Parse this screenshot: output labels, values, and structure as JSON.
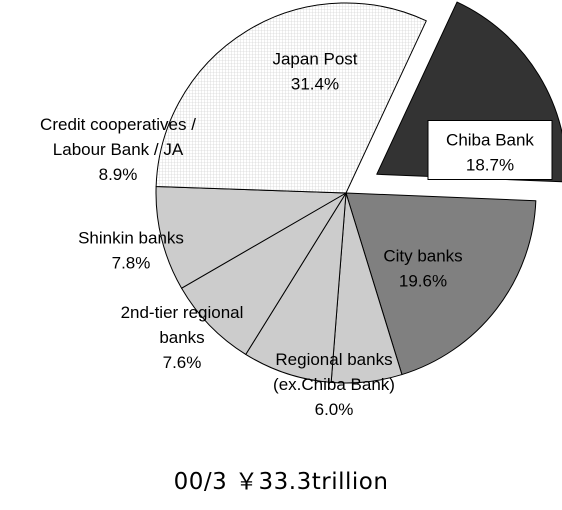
{
  "chart_data": {
    "type": "pie",
    "caption": "00/3 ￥33.3trillion",
    "slices": [
      {
        "label": [
          "Chiba Bank"
        ],
        "value_label": "18.7%",
        "value": 18.7,
        "color": "#333333",
        "exploded": true,
        "label_box": true
      },
      {
        "label": [
          "City banks"
        ],
        "value_label": "19.6%",
        "value": 19.6,
        "color": "#808080"
      },
      {
        "label": [
          "Regional banks",
          "(ex.Chiba Bank)"
        ],
        "value_label": "6.0%",
        "value": 6.0,
        "color": "#cccccc"
      },
      {
        "label": [
          "2nd-tier regional",
          "banks"
        ],
        "value_label": "7.6%",
        "value": 7.6,
        "color": "#cccccc"
      },
      {
        "label": [
          "Shinkin banks"
        ],
        "value_label": "7.8%",
        "value": 7.8,
        "color": "#cccccc"
      },
      {
        "label": [
          "Credit cooperatives /",
          "Labour Bank / JA"
        ],
        "value_label": "8.9%",
        "value": 8.9,
        "color": "#cccccc"
      },
      {
        "label": [
          "Japan Post"
        ],
        "value_label": "31.4%",
        "value": 31.4,
        "color": "#ffffff",
        "pattern": "grid"
      }
    ]
  }
}
